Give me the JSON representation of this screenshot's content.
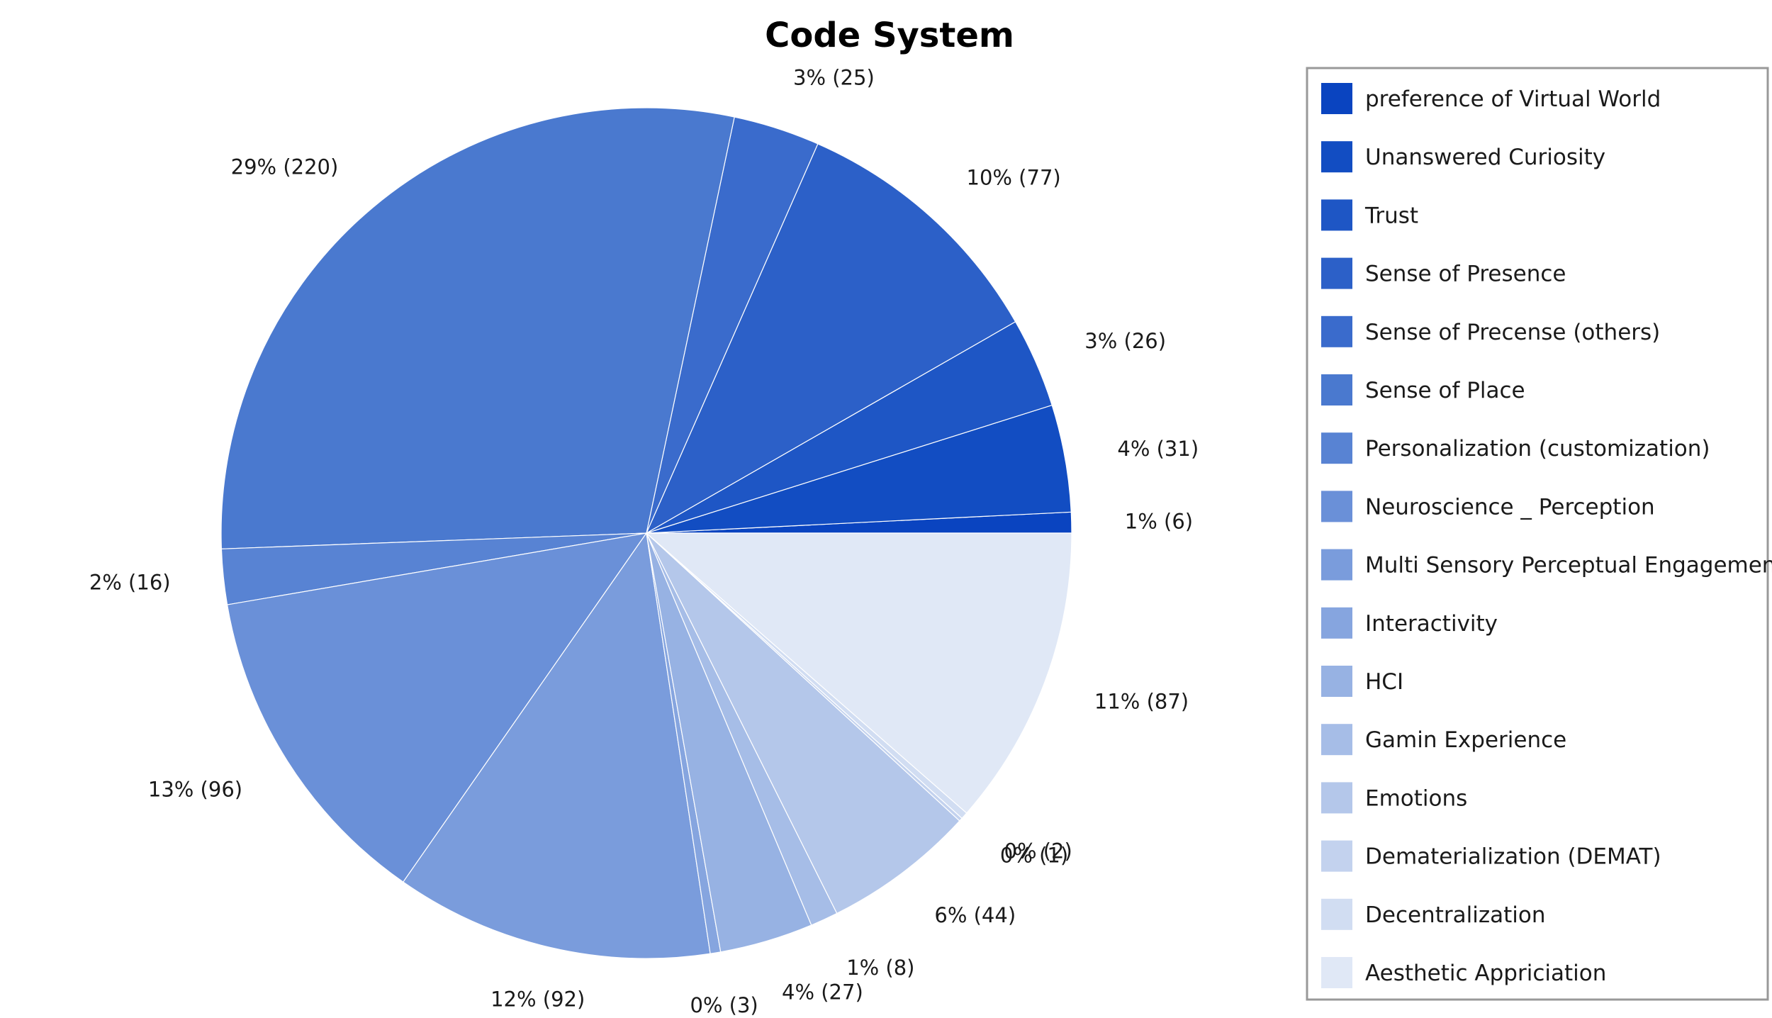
{
  "chart_data": {
    "type": "pie",
    "title": "Code System",
    "legend_position": "right",
    "slices": [
      {
        "label": "preference of Virtual World",
        "value": 6,
        "percent_label": "1% (6)",
        "color": "#0a44c0"
      },
      {
        "label": "Unanswered Curiosity",
        "value": 31,
        "percent_label": "4% (31)",
        "color": "#124dc2"
      },
      {
        "label": "Trust",
        "value": 26,
        "percent_label": "3% (26)",
        "color": "#1e56c5"
      },
      {
        "label": "Sense of Presence",
        "value": 77,
        "percent_label": "10% (77)",
        "color": "#2c60c8"
      },
      {
        "label": "Sense of Precense (others)",
        "value": 25,
        "percent_label": "3% (25)",
        "color": "#3a6bcc"
      },
      {
        "label": "Sense of Place",
        "value": 220,
        "percent_label": "29% (220)",
        "color": "#4a79cf"
      },
      {
        "label": "Personalization (customization)",
        "value": 16,
        "percent_label": "2% (16)",
        "color": "#5883d3"
      },
      {
        "label": "Neuroscience _ Perception",
        "value": 96,
        "percent_label": "13% (96)",
        "color": "#6a90d8"
      },
      {
        "label": "Multi Sensory Perceptual Engagement",
        "value": 92,
        "percent_label": "12% (92)",
        "color": "#7a9cdc"
      },
      {
        "label": "Interactivity",
        "value": 3,
        "percent_label": "0% (3)",
        "color": "#86a5df"
      },
      {
        "label": "HCI",
        "value": 27,
        "percent_label": "4% (27)",
        "color": "#97b2e3"
      },
      {
        "label": "Gamin Experience",
        "value": 8,
        "percent_label": "1% (8)",
        "color": "#a6bde7"
      },
      {
        "label": "Emotions",
        "value": 44,
        "percent_label": "6% (44)",
        "color": "#b4c7ea"
      },
      {
        "label": "Dematerialization (DEMAT)",
        "value": 1,
        "percent_label": "0% (1)",
        "color": "#c3d2ee"
      },
      {
        "label": "Decentralization",
        "value": 2,
        "percent_label": "0% (2)",
        "color": "#d1ddf2"
      },
      {
        "label": "Aesthetic Appriciation",
        "value": 87,
        "percent_label": "11% (87)",
        "color": "#e0e8f6"
      }
    ]
  }
}
